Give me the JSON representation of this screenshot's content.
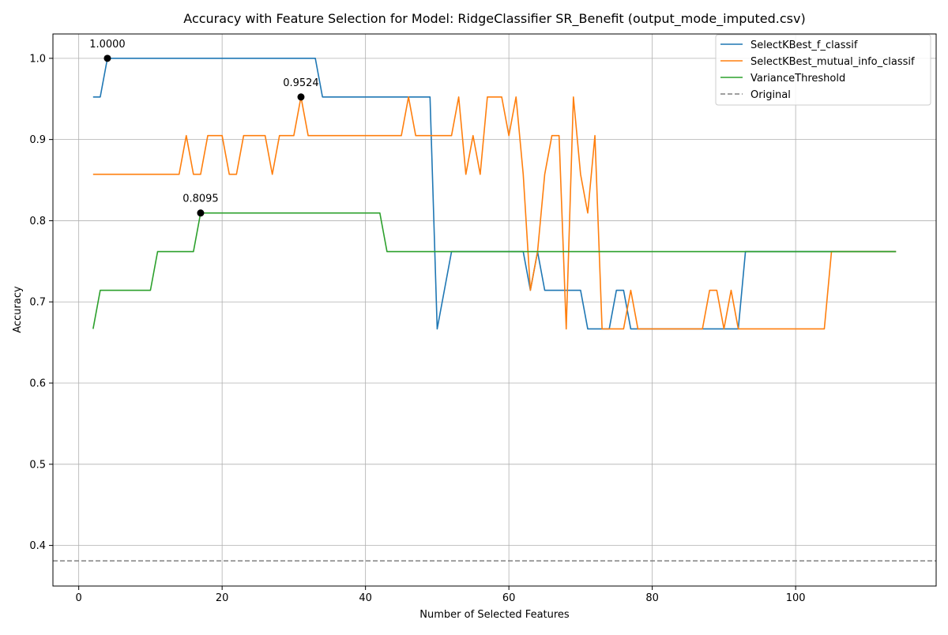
{
  "chart_data": {
    "type": "line",
    "title": "Accuracy with Feature Selection for Model: RidgeClassifier SR_Benefit (output_mode_imputed.csv)",
    "xlabel": "Number of Selected Features",
    "ylabel": "Accuracy",
    "xlim": [
      -3.6,
      119.6
    ],
    "ylim": [
      0.35,
      1.03
    ],
    "xticks": [
      0,
      20,
      40,
      60,
      80,
      100
    ],
    "yticks": [
      0.4,
      0.5,
      0.6,
      0.7,
      0.8,
      0.9,
      1.0
    ],
    "xtick_labels": [
      "0",
      "20",
      "40",
      "60",
      "80",
      "100"
    ],
    "ytick_labels": [
      "0.4",
      "0.5",
      "0.6",
      "0.7",
      "0.8",
      "0.9",
      "1.0"
    ],
    "grid": true,
    "legend_position": "top-right",
    "baseline": {
      "name": "Original",
      "value": 0.381,
      "color": "#808080",
      "style": "dashed"
    },
    "series": [
      {
        "name": "SelectKBest_f_classif",
        "color": "#1f77b4",
        "points": [
          [
            2,
            0.9524
          ],
          [
            3,
            0.9524
          ],
          [
            4,
            1.0
          ],
          [
            5,
            1.0
          ],
          [
            10,
            1.0
          ],
          [
            15,
            1.0
          ],
          [
            20,
            1.0
          ],
          [
            25,
            1.0
          ],
          [
            30,
            1.0
          ],
          [
            33,
            1.0
          ],
          [
            34,
            0.9524
          ],
          [
            40,
            0.9524
          ],
          [
            45,
            0.9524
          ],
          [
            49,
            0.9524
          ],
          [
            50,
            0.6667
          ],
          [
            51,
            0.7143
          ],
          [
            52,
            0.7619
          ],
          [
            55,
            0.7619
          ],
          [
            60,
            0.7619
          ],
          [
            62,
            0.7619
          ],
          [
            63,
            0.7143
          ],
          [
            64,
            0.7619
          ],
          [
            65,
            0.7143
          ],
          [
            70,
            0.7143
          ],
          [
            71,
            0.6667
          ],
          [
            74,
            0.6667
          ],
          [
            75,
            0.7143
          ],
          [
            76,
            0.7143
          ],
          [
            77,
            0.6667
          ],
          [
            80,
            0.6667
          ],
          [
            90,
            0.6667
          ],
          [
            92,
            0.6667
          ],
          [
            93,
            0.7619
          ],
          [
            100,
            0.7619
          ],
          [
            114,
            0.7619
          ]
        ]
      },
      {
        "name": "SelectKBest_mutual_info_classif",
        "color": "#ff7f0e",
        "points": [
          [
            2,
            0.8571
          ],
          [
            3,
            0.8571
          ],
          [
            4,
            0.8571
          ],
          [
            5,
            0.8571
          ],
          [
            6,
            0.8571
          ],
          [
            7,
            0.8571
          ],
          [
            8,
            0.8571
          ],
          [
            9,
            0.8571
          ],
          [
            10,
            0.8571
          ],
          [
            11,
            0.8571
          ],
          [
            12,
            0.8571
          ],
          [
            13,
            0.8571
          ],
          [
            14,
            0.8571
          ],
          [
            15,
            0.9048
          ],
          [
            16,
            0.8571
          ],
          [
            17,
            0.8571
          ],
          [
            18,
            0.9048
          ],
          [
            19,
            0.9048
          ],
          [
            20,
            0.9048
          ],
          [
            21,
            0.8571
          ],
          [
            22,
            0.8571
          ],
          [
            23,
            0.9048
          ],
          [
            24,
            0.9048
          ],
          [
            25,
            0.9048
          ],
          [
            26,
            0.9048
          ],
          [
            27,
            0.8571
          ],
          [
            28,
            0.9048
          ],
          [
            29,
            0.9048
          ],
          [
            30,
            0.9048
          ],
          [
            31,
            0.9524
          ],
          [
            32,
            0.9048
          ],
          [
            33,
            0.9048
          ],
          [
            34,
            0.9048
          ],
          [
            35,
            0.9048
          ],
          [
            36,
            0.9048
          ],
          [
            37,
            0.9048
          ],
          [
            38,
            0.9048
          ],
          [
            39,
            0.9048
          ],
          [
            40,
            0.9048
          ],
          [
            41,
            0.9048
          ],
          [
            42,
            0.9048
          ],
          [
            43,
            0.9048
          ],
          [
            44,
            0.9048
          ],
          [
            45,
            0.9048
          ],
          [
            46,
            0.9524
          ],
          [
            47,
            0.9048
          ],
          [
            48,
            0.9048
          ],
          [
            49,
            0.9048
          ],
          [
            50,
            0.9048
          ],
          [
            51,
            0.9048
          ],
          [
            52,
            0.9048
          ],
          [
            53,
            0.9524
          ],
          [
            54,
            0.8571
          ],
          [
            55,
            0.9048
          ],
          [
            56,
            0.8571
          ],
          [
            57,
            0.9524
          ],
          [
            58,
            0.9524
          ],
          [
            59,
            0.9524
          ],
          [
            60,
            0.9048
          ],
          [
            61,
            0.9524
          ],
          [
            62,
            0.8571
          ],
          [
            63,
            0.7143
          ],
          [
            64,
            0.7619
          ],
          [
            65,
            0.8571
          ],
          [
            66,
            0.9048
          ],
          [
            67,
            0.9048
          ],
          [
            68,
            0.6667
          ],
          [
            69,
            0.9524
          ],
          [
            70,
            0.8571
          ],
          [
            71,
            0.8095
          ],
          [
            72,
            0.9048
          ],
          [
            73,
            0.6667
          ],
          [
            74,
            0.6667
          ],
          [
            75,
            0.6667
          ],
          [
            76,
            0.6667
          ],
          [
            77,
            0.7143
          ],
          [
            78,
            0.6667
          ],
          [
            80,
            0.6667
          ],
          [
            85,
            0.6667
          ],
          [
            87,
            0.6667
          ],
          [
            88,
            0.7143
          ],
          [
            89,
            0.7143
          ],
          [
            90,
            0.6667
          ],
          [
            91,
            0.7143
          ],
          [
            92,
            0.6667
          ],
          [
            95,
            0.6667
          ],
          [
            100,
            0.6667
          ],
          [
            104,
            0.6667
          ],
          [
            105,
            0.7619
          ],
          [
            110,
            0.7619
          ],
          [
            114,
            0.7619
          ]
        ]
      },
      {
        "name": "VarianceThreshold",
        "color": "#2ca02c",
        "points": [
          [
            2,
            0.6667
          ],
          [
            3,
            0.7143
          ],
          [
            5,
            0.7143
          ],
          [
            10,
            0.7143
          ],
          [
            11,
            0.7619
          ],
          [
            16,
            0.7619
          ],
          [
            17,
            0.8095
          ],
          [
            20,
            0.8095
          ],
          [
            30,
            0.8095
          ],
          [
            40,
            0.8095
          ],
          [
            42,
            0.8095
          ],
          [
            43,
            0.7619
          ],
          [
            50,
            0.7619
          ],
          [
            60,
            0.7619
          ],
          [
            70,
            0.7619
          ],
          [
            80,
            0.7619
          ],
          [
            90,
            0.7619
          ],
          [
            100,
            0.7619
          ],
          [
            114,
            0.7619
          ]
        ]
      }
    ],
    "annotations": [
      {
        "x": 4,
        "y": 1.0,
        "label": "1.0000"
      },
      {
        "x": 31,
        "y": 0.9524,
        "label": "0.9524"
      },
      {
        "x": 17,
        "y": 0.8095,
        "label": "0.8095"
      }
    ]
  }
}
